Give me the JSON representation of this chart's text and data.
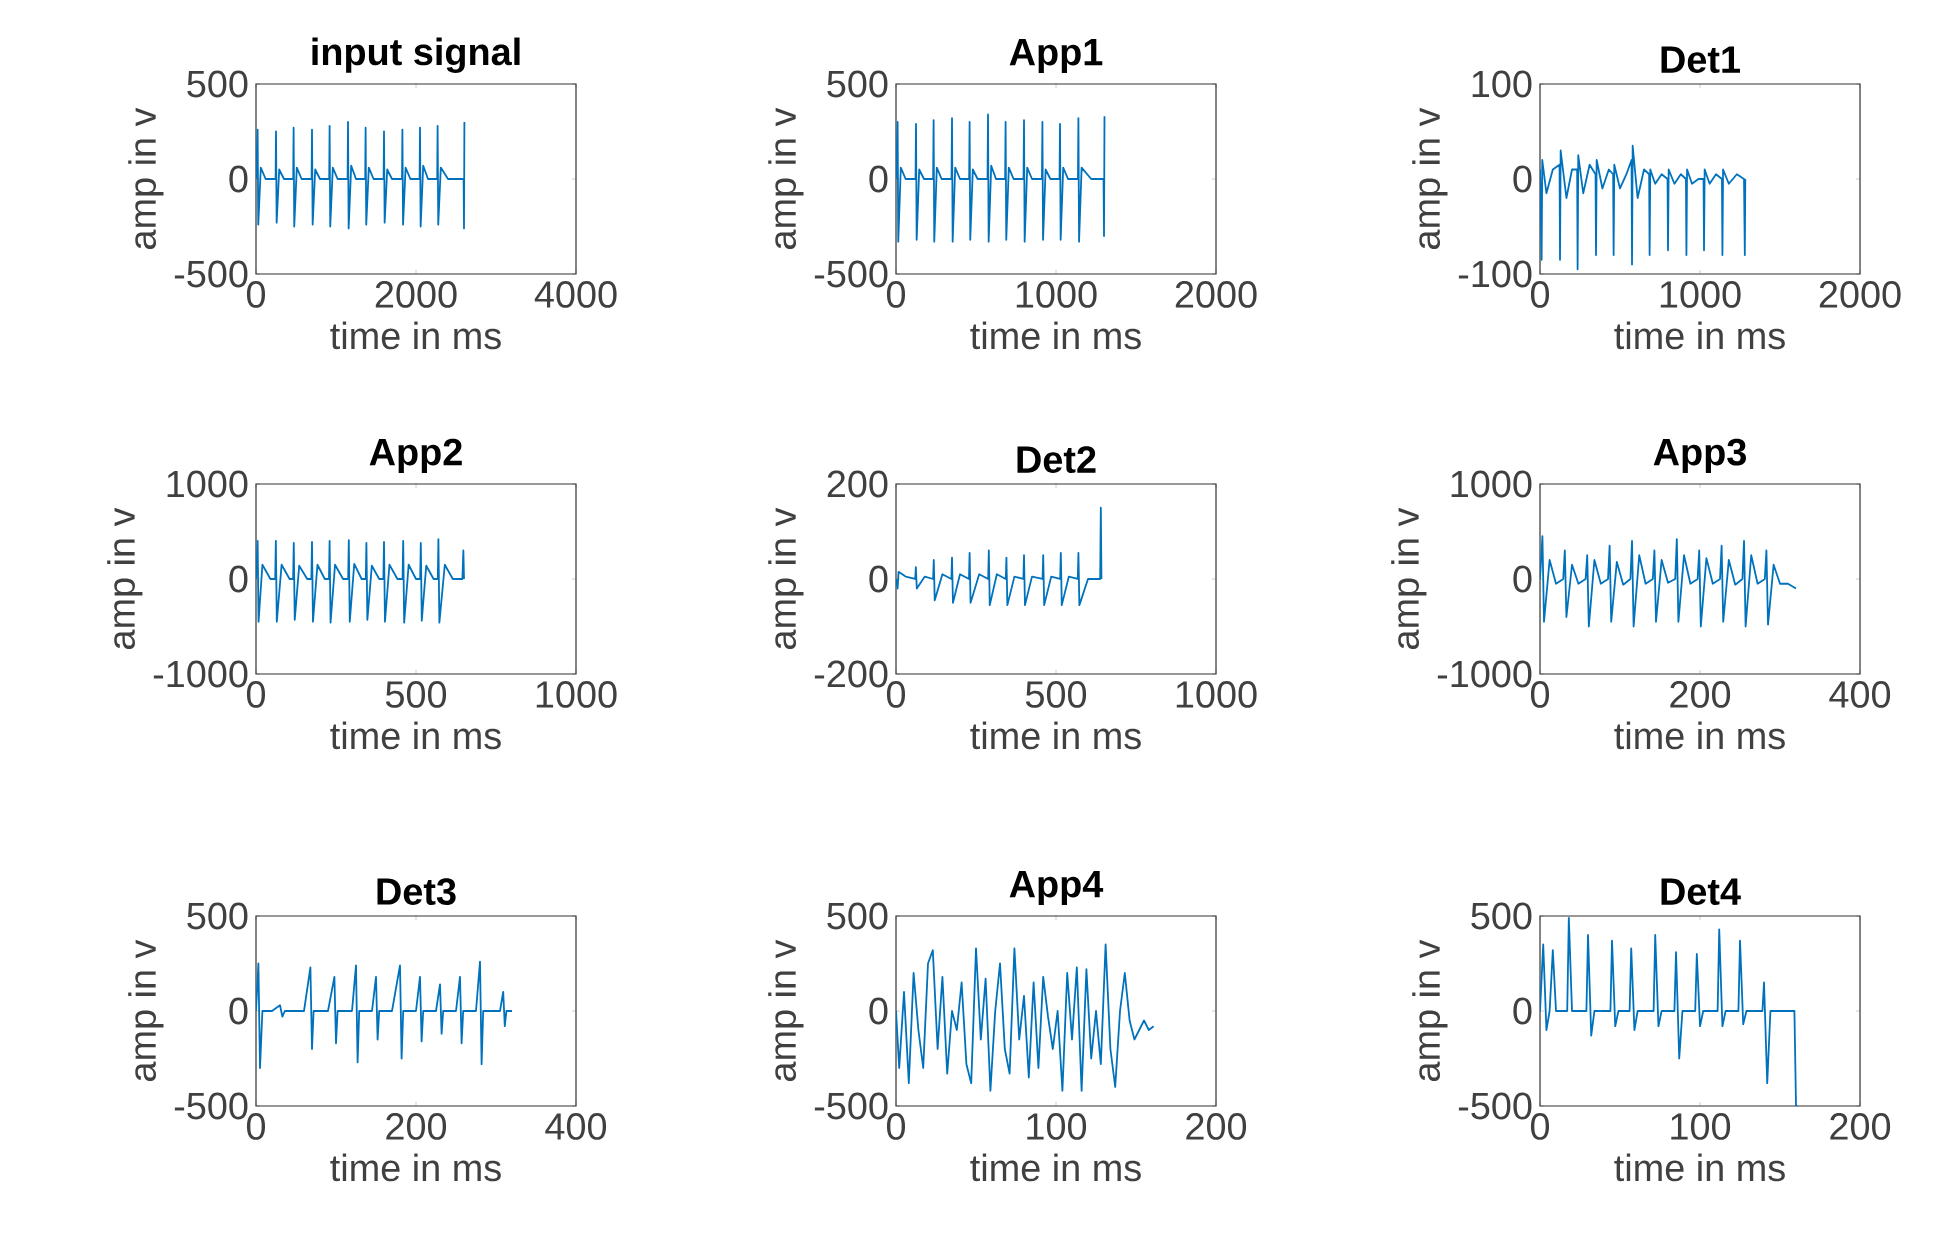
{
  "chart_data": [
    {
      "type": "line",
      "title": "input signal",
      "xlabel": "time in ms",
      "ylabel": "amp in v",
      "color": "#0072bd",
      "xlim": [
        0,
        4000
      ],
      "ylim": [
        -500,
        500
      ],
      "xticks": [
        0,
        2000,
        4000
      ],
      "yticks": [
        -500,
        0,
        500
      ],
      "x": [
        0,
        20,
        28,
        60,
        120,
        245,
        250,
        258,
        290,
        350,
        465,
        470,
        478,
        510,
        570,
        695,
        700,
        708,
        740,
        800,
        915,
        920,
        928,
        960,
        1020,
        1145,
        1150,
        1158,
        1190,
        1250,
        1365,
        1370,
        1378,
        1410,
        1470,
        1595,
        1600,
        1608,
        1640,
        1700,
        1825,
        1830,
        1838,
        1870,
        1930,
        2045,
        2050,
        2058,
        2090,
        2150,
        2265,
        2270,
        2278,
        2310,
        2400,
        2595,
        2600,
        2605
      ],
      "values": [
        0,
        260,
        -240,
        60,
        0,
        0,
        250,
        -230,
        50,
        0,
        0,
        270,
        -250,
        60,
        0,
        0,
        260,
        -240,
        50,
        0,
        0,
        280,
        -250,
        60,
        0,
        0,
        300,
        -260,
        70,
        0,
        0,
        270,
        -240,
        60,
        0,
        0,
        250,
        -230,
        50,
        0,
        0,
        260,
        -240,
        60,
        0,
        0,
        270,
        -250,
        70,
        0,
        0,
        280,
        -240,
        60,
        0,
        0,
        -260,
        300
      ]
    },
    {
      "type": "line",
      "title": "App1",
      "xlabel": "time in ms",
      "ylabel": "amp in v",
      "color": "#0072bd",
      "xlim": [
        0,
        2000
      ],
      "ylim": [
        -500,
        500
      ],
      "xticks": [
        0,
        1000,
        2000
      ],
      "yticks": [
        -500,
        0,
        500
      ],
      "x": [
        0,
        10,
        14,
        30,
        60,
        122,
        125,
        129,
        145,
        175,
        232,
        235,
        239,
        255,
        285,
        347,
        350,
        354,
        370,
        400,
        457,
        460,
        464,
        480,
        510,
        572,
        575,
        579,
        595,
        625,
        682,
        685,
        689,
        705,
        735,
        797,
        800,
        804,
        820,
        850,
        912,
        915,
        919,
        935,
        965,
        1022,
        1025,
        1029,
        1045,
        1075,
        1137,
        1140,
        1144,
        1160,
        1220,
        1297,
        1300,
        1303
      ],
      "values": [
        0,
        300,
        -330,
        60,
        0,
        0,
        290,
        -320,
        50,
        0,
        0,
        310,
        -330,
        60,
        0,
        0,
        320,
        -330,
        60,
        0,
        0,
        300,
        -320,
        50,
        0,
        0,
        340,
        -330,
        70,
        0,
        0,
        300,
        -320,
        60,
        0,
        0,
        310,
        -330,
        60,
        0,
        0,
        300,
        -320,
        50,
        0,
        0,
        290,
        -320,
        60,
        0,
        0,
        320,
        -330,
        60,
        0,
        0,
        -300,
        330
      ]
    },
    {
      "type": "line",
      "title": "Det1",
      "xlabel": "time in ms",
      "ylabel": "amp in v",
      "color": "#0072bd",
      "xlim": [
        0,
        2000
      ],
      "ylim": [
        -100,
        100
      ],
      "xticks": [
        0,
        1000,
        2000
      ],
      "yticks": [
        -100,
        0,
        100
      ],
      "x": [
        0,
        10,
        14,
        40,
        80,
        122,
        125,
        129,
        165,
        200,
        232,
        235,
        239,
        270,
        310,
        347,
        350,
        354,
        390,
        430,
        457,
        460,
        464,
        500,
        540,
        572,
        575,
        579,
        610,
        650,
        682,
        685,
        689,
        720,
        760,
        797,
        800,
        804,
        840,
        880,
        912,
        915,
        919,
        950,
        990,
        1022,
        1025,
        1029,
        1060,
        1100,
        1137,
        1140,
        1144,
        1180,
        1230,
        1275,
        1280,
        1283
      ],
      "values": [
        10,
        -85,
        20,
        -15,
        10,
        15,
        -85,
        30,
        -20,
        10,
        10,
        -95,
        25,
        -15,
        15,
        5,
        -80,
        20,
        -10,
        10,
        5,
        -80,
        15,
        -10,
        5,
        20,
        -90,
        35,
        -20,
        10,
        5,
        -80,
        10,
        -5,
        5,
        0,
        -75,
        10,
        -5,
        5,
        0,
        -80,
        10,
        -5,
        0,
        0,
        -75,
        10,
        -5,
        5,
        0,
        -80,
        10,
        -5,
        5,
        0,
        -80,
        0
      ]
    },
    {
      "type": "line",
      "title": "App2",
      "xlabel": "time in ms",
      "ylabel": "amp in v",
      "color": "#0072bd",
      "xlim": [
        0,
        1000
      ],
      "ylim": [
        -1000,
        1000
      ],
      "xticks": [
        0,
        500,
        1000
      ],
      "yticks": [
        -1000,
        0,
        1000
      ],
      "x": [
        0,
        5,
        8,
        20,
        45,
        60,
        62,
        65,
        80,
        105,
        116,
        118,
        121,
        135,
        160,
        173,
        175,
        178,
        192,
        215,
        228,
        230,
        233,
        247,
        272,
        288,
        290,
        293,
        307,
        330,
        343,
        345,
        348,
        362,
        385,
        398,
        400,
        403,
        417,
        442,
        458,
        460,
        463,
        477,
        500,
        513,
        515,
        518,
        532,
        555,
        568,
        570,
        573,
        590,
        615,
        645,
        648,
        650
      ],
      "values": [
        0,
        400,
        -450,
        150,
        0,
        0,
        400,
        -450,
        150,
        0,
        0,
        380,
        -430,
        140,
        0,
        0,
        390,
        -450,
        150,
        0,
        0,
        400,
        -460,
        150,
        0,
        0,
        410,
        -450,
        160,
        0,
        0,
        380,
        -430,
        140,
        0,
        0,
        390,
        -450,
        150,
        0,
        0,
        400,
        -460,
        150,
        0,
        0,
        380,
        -440,
        140,
        0,
        0,
        420,
        -460,
        150,
        0,
        0,
        300,
        0
      ]
    },
    {
      "type": "line",
      "title": "Det2",
      "xlabel": "time in ms",
      "ylabel": "amp in v",
      "color": "#0072bd",
      "xlim": [
        0,
        1000
      ],
      "ylim": [
        -200,
        200
      ],
      "xticks": [
        0,
        500,
        1000
      ],
      "yticks": [
        -200,
        0,
        200
      ],
      "x": [
        0,
        5,
        8,
        30,
        60,
        62,
        65,
        90,
        116,
        118,
        121,
        145,
        173,
        175,
        178,
        200,
        228,
        230,
        233,
        260,
        288,
        290,
        293,
        315,
        343,
        345,
        348,
        370,
        398,
        400,
        403,
        425,
        458,
        460,
        463,
        485,
        513,
        515,
        518,
        540,
        568,
        570,
        573,
        600,
        638,
        640,
        642
      ],
      "values": [
        0,
        -20,
        15,
        5,
        0,
        25,
        -20,
        5,
        0,
        40,
        -45,
        10,
        0,
        45,
        -50,
        10,
        0,
        55,
        -50,
        10,
        0,
        60,
        -55,
        10,
        0,
        45,
        -55,
        5,
        0,
        50,
        -55,
        5,
        0,
        50,
        -55,
        5,
        0,
        55,
        -55,
        5,
        0,
        55,
        -55,
        0,
        0,
        150,
        0
      ]
    },
    {
      "type": "line",
      "title": "App3",
      "xlabel": "time in ms",
      "ylabel": "amp in v",
      "color": "#0072bd",
      "xlim": [
        0,
        400
      ],
      "ylim": [
        -1000,
        1000
      ],
      "xticks": [
        0,
        200,
        400
      ],
      "yticks": [
        -1000,
        0,
        1000
      ],
      "x": [
        0,
        3,
        5,
        12,
        20,
        29,
        31,
        33,
        40,
        48,
        57,
        59,
        61,
        68,
        76,
        85,
        87,
        89,
        96,
        104,
        113,
        115,
        117,
        124,
        132,
        141,
        143,
        145,
        152,
        160,
        169,
        171,
        173,
        180,
        188,
        197,
        199,
        201,
        208,
        216,
        225,
        227,
        229,
        236,
        244,
        253,
        255,
        257,
        264,
        272,
        281,
        283,
        285,
        292,
        300,
        310,
        320
      ],
      "values": [
        0,
        450,
        -450,
        200,
        -50,
        0,
        300,
        -400,
        150,
        -50,
        0,
        250,
        -500,
        200,
        -50,
        0,
        350,
        -450,
        180,
        -60,
        0,
        400,
        -500,
        250,
        -50,
        0,
        300,
        -450,
        200,
        -40,
        0,
        420,
        -450,
        250,
        -50,
        0,
        300,
        -500,
        220,
        -50,
        0,
        350,
        -450,
        200,
        -60,
        0,
        400,
        -500,
        250,
        -50,
        0,
        300,
        -480,
        150,
        -50,
        -50,
        -100
      ]
    },
    {
      "type": "line",
      "title": "Det3",
      "xlabel": "time in ms",
      "ylabel": "amp in v",
      "color": "#0072bd",
      "xlim": [
        0,
        400
      ],
      "ylim": [
        -500,
        500
      ],
      "xticks": [
        0,
        200,
        400
      ],
      "yticks": [
        -500,
        0,
        500
      ],
      "x": [
        0,
        3,
        5,
        8,
        20,
        30,
        33,
        36,
        60,
        68,
        70,
        72,
        90,
        98,
        100,
        102,
        120,
        125,
        127,
        129,
        145,
        150,
        152,
        154,
        170,
        180,
        182,
        184,
        200,
        205,
        207,
        209,
        225,
        230,
        232,
        234,
        250,
        255,
        257,
        259,
        275,
        280,
        282,
        284,
        305,
        309,
        311,
        313,
        320
      ],
      "values": [
        0,
        250,
        -300,
        0,
        0,
        30,
        -30,
        0,
        0,
        230,
        -200,
        0,
        0,
        180,
        -170,
        0,
        0,
        240,
        -270,
        0,
        0,
        180,
        -150,
        0,
        0,
        240,
        -250,
        0,
        0,
        180,
        -160,
        0,
        0,
        140,
        -120,
        0,
        0,
        180,
        -170,
        0,
        0,
        260,
        -280,
        0,
        0,
        100,
        -80,
        0,
        0
      ]
    },
    {
      "type": "line",
      "title": "App4",
      "xlabel": "time in ms",
      "ylabel": "amp in v",
      "color": "#0072bd",
      "xlim": [
        0,
        200
      ],
      "ylim": [
        -500,
        500
      ],
      "xticks": [
        0,
        100,
        200
      ],
      "yticks": [
        -500,
        0,
        500
      ],
      "x": [
        0,
        2,
        5,
        8,
        11,
        14,
        17,
        20,
        23,
        26,
        29,
        32,
        35,
        38,
        41,
        44,
        47,
        50,
        53,
        56,
        59,
        62,
        65,
        68,
        71,
        74,
        77,
        80,
        83,
        86,
        89,
        92,
        95,
        98,
        101,
        104,
        107,
        110,
        113,
        116,
        119,
        122,
        125,
        128,
        131,
        134,
        137,
        140,
        143,
        146,
        149,
        152,
        155,
        158,
        161
      ],
      "values": [
        0,
        -300,
        100,
        -380,
        200,
        -100,
        -300,
        250,
        320,
        -200,
        180,
        -330,
        0,
        -100,
        150,
        -280,
        -380,
        330,
        -150,
        170,
        -420,
        0,
        250,
        -200,
        -330,
        330,
        -150,
        80,
        -350,
        150,
        -300,
        180,
        -30,
        -200,
        0,
        -420,
        200,
        -150,
        230,
        -420,
        220,
        -250,
        0,
        -280,
        350,
        -200,
        -400,
        0,
        200,
        -50,
        -150,
        -100,
        -50,
        -100,
        -80
      ]
    },
    {
      "type": "line",
      "title": "Det4",
      "xlabel": "time in ms",
      "ylabel": "amp in v",
      "color": "#0072bd",
      "xlim": [
        0,
        200
      ],
      "ylim": [
        -500,
        500
      ],
      "xticks": [
        0,
        100,
        200
      ],
      "yticks": [
        -500,
        0,
        500
      ],
      "x": [
        0,
        2,
        4,
        6,
        8,
        10,
        17,
        18,
        20,
        29,
        30,
        32,
        34,
        44,
        45,
        47,
        49,
        56,
        57,
        59,
        61,
        71,
        72,
        74,
        76,
        84,
        85,
        87,
        89,
        97,
        98,
        100,
        102,
        111,
        112,
        114,
        116,
        124,
        125,
        127,
        129,
        139,
        140,
        142,
        144,
        159,
        160,
        161
      ],
      "values": [
        0,
        350,
        -100,
        0,
        320,
        0,
        0,
        490,
        0,
        0,
        400,
        -130,
        0,
        0,
        370,
        -80,
        0,
        0,
        330,
        -100,
        0,
        0,
        400,
        -80,
        0,
        0,
        310,
        -250,
        0,
        0,
        300,
        -80,
        0,
        0,
        430,
        -80,
        0,
        0,
        370,
        -70,
        0,
        0,
        150,
        -380,
        0,
        0,
        -500,
        -500
      ]
    }
  ]
}
